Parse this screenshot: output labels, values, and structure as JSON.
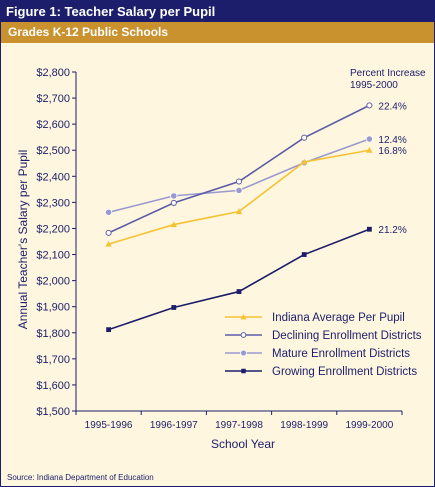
{
  "header": {
    "title": "Figure 1: Teacher Salary per Pupil",
    "subtitle": "Grades K-12 Public Schools"
  },
  "source": "Source: Indiana Department of Education",
  "chart_data": {
    "type": "line",
    "xlabel": "School Year",
    "ylabel": "Annual Teacher's Salary per Pupil",
    "categories": [
      "1995-1996",
      "1996-1997",
      "1997-1998",
      "1998-1999",
      "1999-2000"
    ],
    "ylim": [
      1500,
      2800
    ],
    "yticks": [
      1500,
      1600,
      1700,
      1800,
      1900,
      2000,
      2100,
      2200,
      2300,
      2400,
      2500,
      2600,
      2700,
      2800
    ],
    "ytick_labels": [
      "$1,500",
      "$1,600",
      "$1,700",
      "$1,800",
      "$1,900",
      "$2,000",
      "$2,100",
      "$2,200",
      "$2,300",
      "$2,400",
      "$2,500",
      "$2,600",
      "$2,700",
      "$2,800"
    ],
    "annotation_title": "Percent Increase\n1995-2000",
    "grid": false,
    "legend_position": "bottom-right",
    "series": [
      {
        "name": "Indiana Average Per Pupil",
        "color": "#f5c231",
        "marker": "triangle",
        "values": [
          2140,
          2215,
          2265,
          2455,
          2500
        ],
        "pct_label": "16.8%"
      },
      {
        "name": "Declining Enrollment Districts",
        "color": "#5b5ba8",
        "marker": "circle-open",
        "values": [
          2183,
          2298,
          2380,
          2548,
          2672
        ],
        "pct_label": "22.4%"
      },
      {
        "name": "Mature Enrollment Districts",
        "color": "#9a9ad0",
        "marker": "circle-filled",
        "values": [
          2262,
          2325,
          2346,
          2452,
          2543
        ],
        "pct_label": "12.4%"
      },
      {
        "name": "Growing Enrollment Districts",
        "color": "#1c1e6b",
        "marker": "square",
        "values": [
          1812,
          1897,
          1958,
          2100,
          2197
        ],
        "pct_label": "21.2%"
      }
    ]
  }
}
